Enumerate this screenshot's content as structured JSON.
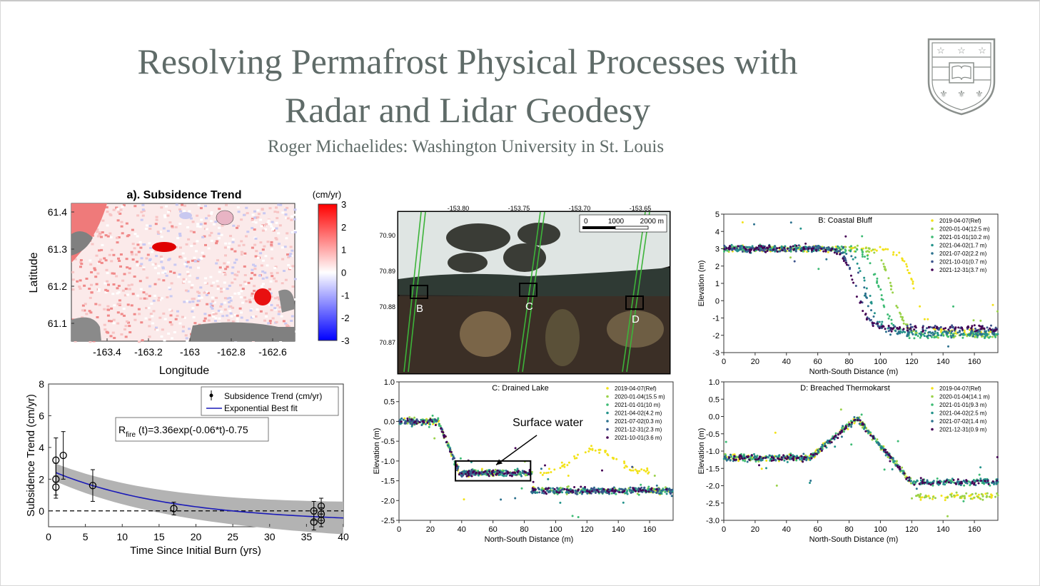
{
  "slide": {
    "title_line1": "Resolving Permafrost Physical Processes with",
    "title_line2": "Radar and Lidar Geodesy",
    "subtitle": "Roger Michaelides: Washington University in St. Louis"
  },
  "colors": {
    "title": "#5f6b68",
    "seal": "#8a8f8c"
  },
  "chart_data": [
    {
      "type": "heatmap",
      "title": "a). Subsidence Trend",
      "xlabel": "Longitude",
      "ylabel": "Latitude",
      "xticks": [
        "-163.4",
        "-163.2",
        "-163",
        "-162.8",
        "-162.6"
      ],
      "yticks": [
        "61.4",
        "61.3",
        "61.2",
        "61.1"
      ],
      "colorbar_label": "(cm/yr)",
      "colorbar_ticks": [
        "3",
        "2",
        "1",
        "0",
        "-1",
        "-2",
        "-3"
      ],
      "colormap": [
        "#0000ff",
        "#ffffff",
        "#ff0000"
      ]
    },
    {
      "type": "scatter",
      "xlabel": "Time Since Initial Burn (yrs)",
      "ylabel": "Subsidence Trend (cm/yr)",
      "xticks": [
        "0",
        "5",
        "10",
        "15",
        "20",
        "25",
        "30",
        "35",
        "40"
      ],
      "yticks": [
        "8",
        "6",
        "4",
        "2",
        "0"
      ],
      "xlim": [
        0,
        40
      ],
      "ylim": [
        -1,
        8
      ],
      "legend": [
        "Subsidence Trend (cm/yr)",
        "Exponential Best fit"
      ],
      "fit_label": {
        "main": "R",
        "sub": "fire",
        "rest": " (t)=3.36exp(-0.06*t)-0.75"
      },
      "fit": {
        "a": 3.36,
        "b": -0.06,
        "c": -0.75
      },
      "points": [
        {
          "x": 1,
          "y": 3.2,
          "err": 1.4
        },
        {
          "x": 1,
          "y": 2.0,
          "err": 1.0
        },
        {
          "x": 1,
          "y": 1.5,
          "err": 0.7
        },
        {
          "x": 2,
          "y": 3.5,
          "err": 1.5
        },
        {
          "x": 6,
          "y": 1.6,
          "err": 1.0
        },
        {
          "x": 17,
          "y": 0.15,
          "err": 0.4
        },
        {
          "x": 36,
          "y": 0.0,
          "err": 0.6
        },
        {
          "x": 36,
          "y": -0.7,
          "err": 0.5
        },
        {
          "x": 37,
          "y": 0.3,
          "err": 0.5
        },
        {
          "x": 37,
          "y": -0.2,
          "err": 0.4
        },
        {
          "x": 37,
          "y": -0.6,
          "err": 0.4
        }
      ]
    },
    {
      "type": "image",
      "xticks": [
        "-153.80",
        "-153.75",
        "-153.70",
        "-153.65"
      ],
      "yticks": [
        "70.90",
        "70.89",
        "70.88",
        "70.87"
      ],
      "scalebar": [
        "0",
        "1000",
        "2000 m"
      ],
      "boxes": [
        "B",
        "C",
        "D"
      ]
    },
    {
      "type": "scatter",
      "title": "B: Coastal Bluff",
      "xlabel": "North-South Distance (m)",
      "ylabel": "Elevation (m)",
      "xticks": [
        "0",
        "20",
        "40",
        "60",
        "80",
        "100",
        "120",
        "140",
        "160"
      ],
      "yticks": [
        "5",
        "4",
        "3",
        "2",
        "1",
        "0",
        "-1",
        "-2",
        "-3"
      ],
      "xlim": [
        0,
        175
      ],
      "ylim": [
        -3,
        5
      ],
      "series": [
        {
          "name": "2019-04-07(Ref)",
          "color": "#f2e21a",
          "start": 3.0,
          "end": -1.8,
          "mid": 122
        },
        {
          "name": "2020-01-04(12.5 m)",
          "color": "#9ad24a",
          "start": 3.0,
          "end": -2.0,
          "mid": 108
        },
        {
          "name": "2021-01-01(10.2 m)",
          "color": "#3dbb74",
          "start": 3.0,
          "end": -2.0,
          "mid": 100
        },
        {
          "name": "2021-04-02(1.7 m)",
          "color": "#24938b",
          "start": 3.0,
          "end": -1.9,
          "mid": 92
        },
        {
          "name": "2021-07-02(2.2 m)",
          "color": "#2c718e",
          "start": 3.0,
          "end": -1.9,
          "mid": 90
        },
        {
          "name": "2021-10-01(0.7 m)",
          "color": "#3b528b",
          "start": 3.0,
          "end": -1.6,
          "mid": 85
        },
        {
          "name": "2021-12-31(3.7 m)",
          "color": "#440154",
          "start": 3.0,
          "end": -1.6,
          "mid": 84
        }
      ]
    },
    {
      "type": "scatter",
      "title": "C: Drained Lake",
      "xlabel": "North-South Distance (m)",
      "ylabel": "Elevation (m)",
      "xticks": [
        "0",
        "20",
        "40",
        "60",
        "80",
        "100",
        "120",
        "140",
        "160"
      ],
      "yticks": [
        "1.0",
        "0.5",
        "0.0",
        "-0.5",
        "-1.0",
        "-1.5",
        "-2.0",
        "-2.5"
      ],
      "xlim": [
        0,
        175
      ],
      "ylim": [
        -2.5,
        1
      ],
      "annotation": "Surface water",
      "series": [
        {
          "name": "2019-04-07(Ref)",
          "color": "#f2e21a"
        },
        {
          "name": "2020-01-04(15.5 m)",
          "color": "#9ad24a"
        },
        {
          "name": "2021-01-01(10 m)",
          "color": "#3dbb74"
        },
        {
          "name": "2021-04-02(4.2 m)",
          "color": "#24938b"
        },
        {
          "name": "2021-07-02(0.3 m)",
          "color": "#2c718e"
        },
        {
          "name": "2021-12-31(2.3 m)",
          "color": "#3b528b"
        },
        {
          "name": "2021-10-01(3.6 m)",
          "color": "#440154"
        }
      ]
    },
    {
      "type": "scatter",
      "title": "D: Breached Thermokarst",
      "xlabel": "North-South Distance (m)",
      "ylabel": "Elevation (m)",
      "xticks": [
        "0",
        "20",
        "40",
        "60",
        "80",
        "100",
        "120",
        "140",
        "160"
      ],
      "yticks": [
        "1.0",
        "0.5",
        "0.0",
        "-0.5",
        "-1.0",
        "-1.5",
        "-2.0",
        "-2.5",
        "-3.0"
      ],
      "xlim": [
        0,
        175
      ],
      "ylim": [
        -3,
        1
      ],
      "series": [
        {
          "name": "2019-04-07(Ref)",
          "color": "#f2e21a"
        },
        {
          "name": "2020-01-04(14.1 m)",
          "color": "#9ad24a"
        },
        {
          "name": "2021-01-01(9.3 m)",
          "color": "#3dbb74"
        },
        {
          "name": "2021-04-02(2.5 m)",
          "color": "#24938b"
        },
        {
          "name": "2021-07-02(1.4 m)",
          "color": "#2c718e"
        },
        {
          "name": "2021-12-31(0.9 m)",
          "color": "#440154"
        }
      ]
    }
  ]
}
